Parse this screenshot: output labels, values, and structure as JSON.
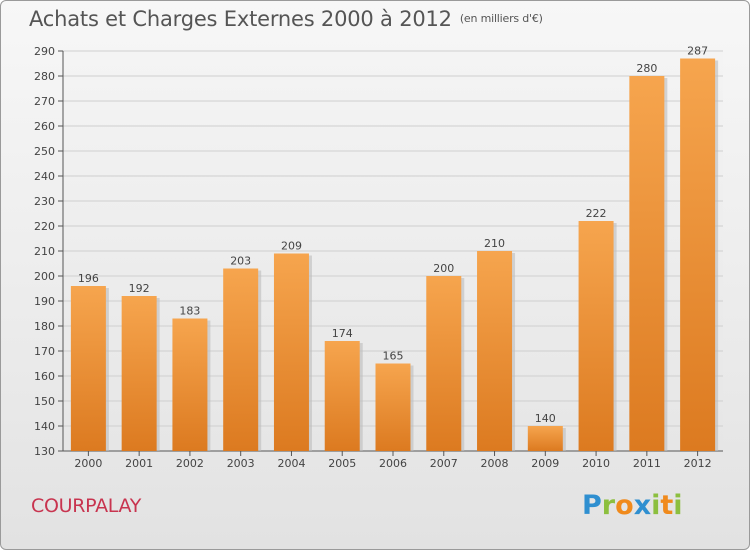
{
  "chart_data": {
    "type": "bar",
    "title": "Achats et Charges Externes 2000 à 2012",
    "subtitle": "(en milliers d'€)",
    "categories": [
      "2000",
      "2001",
      "2002",
      "2003",
      "2004",
      "2005",
      "2006",
      "2007",
      "2008",
      "2009",
      "2010",
      "2011",
      "2012"
    ],
    "values": [
      196,
      192,
      183,
      203,
      209,
      174,
      165,
      200,
      210,
      140,
      222,
      280,
      287
    ],
    "ylim": [
      130,
      290
    ],
    "yticks": [
      130,
      140,
      150,
      160,
      170,
      180,
      190,
      200,
      210,
      220,
      230,
      240,
      250,
      260,
      270,
      280,
      290
    ],
    "grid": true,
    "bar_color_top": "#f6a54e",
    "bar_color_bottom": "#dc7a20"
  },
  "commune": "COURPALAY",
  "logo": {
    "letters": [
      {
        "ch": "P",
        "color": "#2f8fd0"
      },
      {
        "ch": "r",
        "color": "#8cbf3f"
      },
      {
        "ch": "o",
        "color": "#f08a1c"
      },
      {
        "ch": "x",
        "color": "#2f8fd0"
      },
      {
        "ch": "i",
        "color": "#8cbf3f"
      },
      {
        "ch": "t",
        "color": "#f08a1c"
      },
      {
        "ch": "i",
        "color": "#8cbf3f"
      }
    ]
  }
}
